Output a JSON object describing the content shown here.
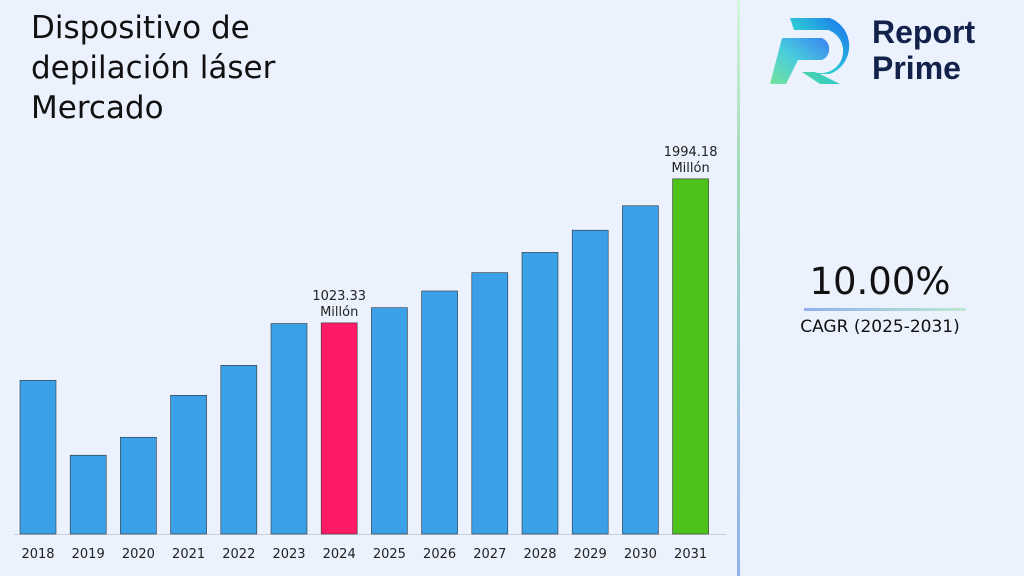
{
  "title": "Dispositivo de\ndepilación láser\nMercado",
  "logo": {
    "text_line1": "Report",
    "text_line2": "Prime"
  },
  "cagr": {
    "value": "10.00%",
    "label": "CAGR (2025-2031)"
  },
  "colors": {
    "bar": "#3aa0e8",
    "highlight_2024": "#ff1a66",
    "highlight_2031": "#4cc21a",
    "background": "#ebf2fd"
  },
  "chart_data": {
    "type": "bar",
    "categories": [
      "2018",
      "2019",
      "2020",
      "2021",
      "2022",
      "2023",
      "2024",
      "2025",
      "2026",
      "2027",
      "2028",
      "2029",
      "2030",
      "2031"
    ],
    "values": [
      636,
      131,
      252,
      535,
      737,
      1019,
      1023.33,
      1125.66,
      1238.23,
      1362.05,
      1498.26,
      1648.08,
      1812.89,
      1994.18
    ],
    "data_labels": [
      {
        "category": "2024",
        "text": [
          "1023.33",
          "Millón"
        ]
      },
      {
        "category": "2031",
        "text": [
          "1994.18",
          "Millón"
        ]
      }
    ],
    "ylim": [
      -400,
      2000
    ],
    "grid": false,
    "legend": "none",
    "xlabel": "",
    "ylabel": ""
  }
}
